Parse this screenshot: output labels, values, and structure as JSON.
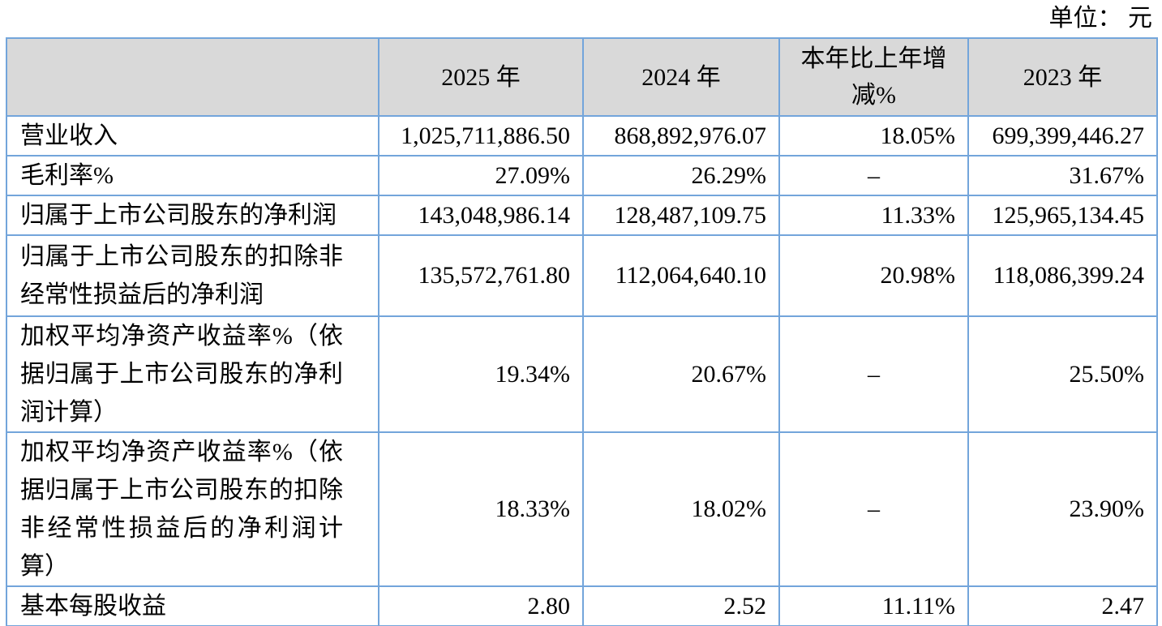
{
  "page": {
    "unit_label": "单位： 元"
  },
  "table": {
    "columns": [
      "",
      "2025 年",
      "2024 年",
      "本年比上年增减%",
      "2023 年"
    ],
    "rows": [
      {
        "label": "营业收入",
        "y2025": "1,025,711,886.50",
        "y2024": "868,892,976.07",
        "change": "18.05%",
        "y2023": "699,399,446.27"
      },
      {
        "label": "毛利率%",
        "y2025": "27.09%",
        "y2024": "26.29%",
        "change": "–",
        "y2023": "31.67%"
      },
      {
        "label": "归属于上市公司股东的净利润",
        "y2025": "143,048,986.14",
        "y2024": "128,487,109.75",
        "change": "11.33%",
        "y2023": "125,965,134.45"
      },
      {
        "label": "归属于上市公司股东的扣除非经常性损益后的净利润",
        "y2025": "135,572,761.80",
        "y2024": "112,064,640.10",
        "change": "20.98%",
        "y2023": "118,086,399.24"
      },
      {
        "label": "加权平均净资产收益率%（依据归属于上市公司股东的净利润计算）",
        "y2025": "19.34%",
        "y2024": "20.67%",
        "change": "–",
        "y2023": "25.50%"
      },
      {
        "label": "加权平均净资产收益率%（依据归属于上市公司股东的扣除非经常性损益后的净利润计算）",
        "y2025": "18.33%",
        "y2024": "18.02%",
        "change": "–",
        "y2023": "23.90%"
      },
      {
        "label": "基本每股收益",
        "y2025": "2.80",
        "y2024": "2.52",
        "change": "11.11%",
        "y2023": "2.47"
      }
    ]
  }
}
